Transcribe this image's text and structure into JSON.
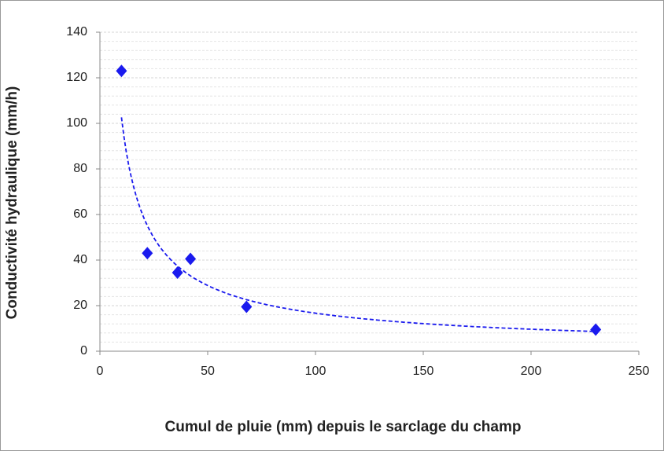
{
  "chart_data": {
    "type": "scatter",
    "xlabel": "Cumul de pluie (mm) depuis le sarclage du champ",
    "ylabel": "Conductivité hydraulique (mm/h)",
    "x": [
      10,
      22,
      36,
      42,
      68,
      230
    ],
    "values": [
      123,
      43,
      34.5,
      40.5,
      19.5,
      9.5
    ],
    "color": "#1a1aee",
    "trendline": "power",
    "xlim": [
      0,
      250
    ],
    "xticks": [
      0,
      50,
      100,
      150,
      200,
      250
    ],
    "ylim": [
      0,
      140
    ],
    "yticks": [
      0,
      20,
      40,
      60,
      80,
      100,
      120,
      140
    ],
    "grid": true
  }
}
